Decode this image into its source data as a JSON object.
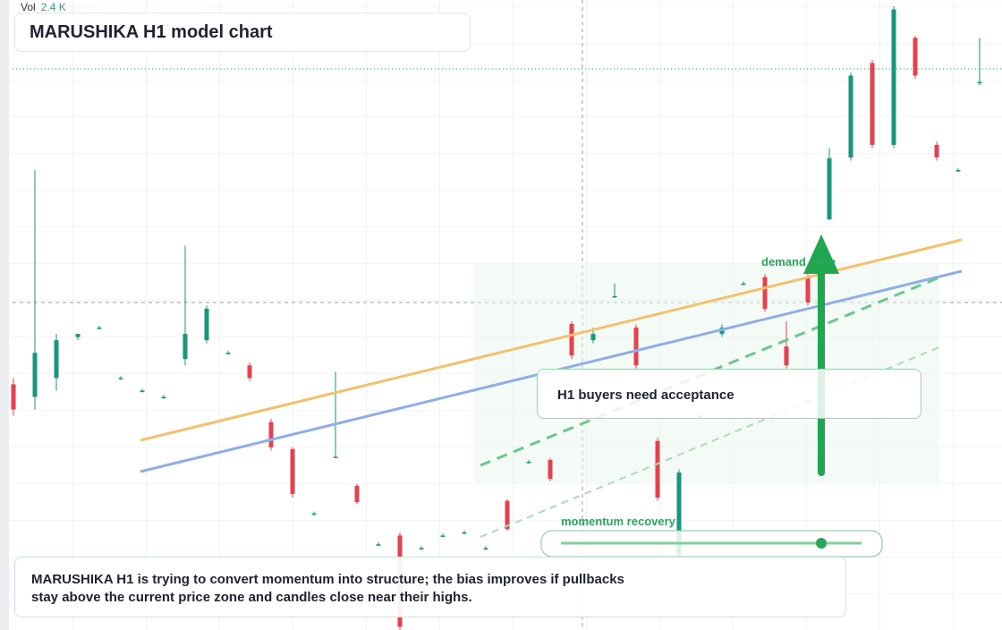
{
  "chart_data": {
    "type": "candlestick",
    "title": "MARUSHIKA H1 model chart",
    "volume_name": "Vol",
    "volume_label": "2.4 K",
    "annotations": {
      "box": "H1 buyers need acceptance",
      "zone": "demand zone",
      "momentum": "momentum recovery",
      "summary": "MARUSHIKA H1 is trying to convert momentum into structure; the bias improves if pullbacks stay above the current price zone and candles close near their highs."
    },
    "up_color": "#17977b",
    "down_color": "#e5414f",
    "ylim": [
      0,
      100
    ],
    "open": [
      39,
      37,
      40,
      46.5,
      48,
      40,
      38,
      37,
      43,
      46,
      44,
      42,
      33,
      28.7,
      18.5,
      27.5,
      22.9,
      13.6,
      15,
      13,
      15,
      15.5,
      13,
      20.5,
      26.7,
      27,
      48.6,
      46,
      53,
      48,
      30,
      12,
      34,
      47,
      55,
      56,
      45,
      56,
      65.2,
      75,
      90,
      77,
      94,
      77,
      73,
      87
    ],
    "high": [
      40,
      73,
      47,
      47,
      48.3,
      40.3,
      38.3,
      37.3,
      61,
      51.5,
      44.3,
      42.5,
      33.5,
      29,
      18.8,
      41,
      23.2,
      13.9,
      15.5,
      13.3,
      15.3,
      15.8,
      13.3,
      20.8,
      27,
      27.3,
      49,
      48,
      55,
      48.5,
      30.5,
      25.5,
      34.3,
      48.5,
      55.3,
      56.5,
      49,
      57,
      76.5,
      88.5,
      90.5,
      99,
      94.3,
      77.5,
      73.3,
      94
    ],
    "low": [
      34,
      35,
      38,
      46,
      47.7,
      39.7,
      37.7,
      36.7,
      42,
      45.5,
      43.7,
      39.5,
      28.5,
      21,
      18.2,
      27.3,
      20,
      13.3,
      0,
      12.7,
      14.7,
      15.2,
      12.7,
      15.8,
      26.4,
      23.6,
      43,
      45.5,
      52.7,
      41.5,
      20.5,
      11.5,
      33.7,
      46.5,
      54.7,
      50.5,
      41.5,
      51.5,
      65,
      74.5,
      76.5,
      76.5,
      87.5,
      74.5,
      72.7,
      86.5
    ],
    "close": [
      35,
      44,
      46,
      47,
      48,
      40,
      38,
      37,
      47,
      51,
      44,
      40,
      29,
      21.6,
      18.5,
      27.5,
      20.3,
      13.6,
      0.5,
      13,
      15,
      15.5,
      13,
      16,
      26.7,
      24,
      43.6,
      47,
      53,
      42,
      21,
      25,
      34,
      48,
      55,
      51,
      42,
      52,
      74.9,
      88,
      77,
      98.5,
      88,
      75,
      73,
      87
    ]
  }
}
